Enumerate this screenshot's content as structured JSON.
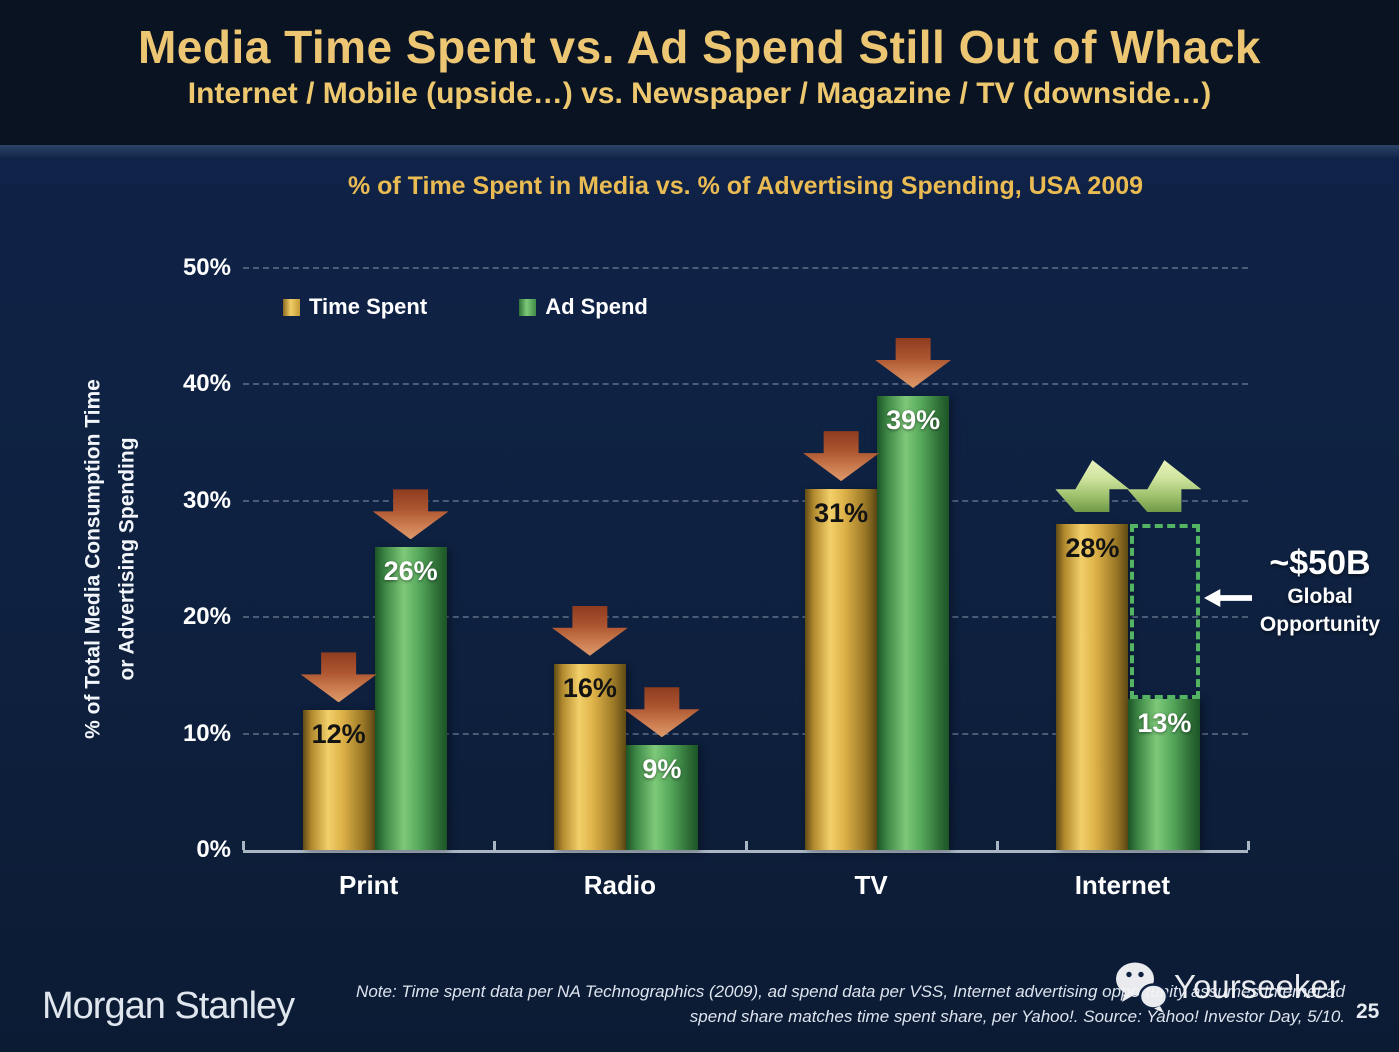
{
  "slide": {
    "title": "Media Time Spent vs. Ad Spend Still Out of Whack",
    "subtitle": "Internet / Mobile (upside…) vs. Newspaper / Magazine / TV (downside…)"
  },
  "chart_data": {
    "type": "bar",
    "title": "% of Time Spent in Media vs. % of Advertising Spending, USA 2009",
    "ylabel": [
      "% of Total Media Consumption Time",
      "or Advertising Spending"
    ],
    "ylim": [
      0,
      50
    ],
    "yticks": [
      0,
      10,
      20,
      30,
      40,
      50
    ],
    "ytick_suffix": "%",
    "grid": "horizontal-dashed",
    "legend_position": "top-left-inside-plot",
    "categories": [
      "Print",
      "Radio",
      "TV",
      "Internet"
    ],
    "series": [
      {
        "name": "Time Spent",
        "color": "#D7AC44",
        "values": [
          12,
          16,
          31,
          28
        ]
      },
      {
        "name": "Ad Spend",
        "color": "#55A75B",
        "values": [
          26,
          9,
          39,
          13
        ]
      }
    ],
    "value_suffix": "%",
    "trend_by_category": {
      "Print": "down",
      "Radio": "down",
      "TV": "down",
      "Internet": "up"
    },
    "annotation": {
      "headline": "~$50B",
      "caption_line1": "Global",
      "caption_line2": "Opportunity",
      "gap_category": "Internet",
      "gap_from": 13,
      "gap_to": 28
    }
  },
  "footer": {
    "brand": "Morgan Stanley",
    "note_line1": "Note: Time spent data per NA Technographics (2009), ad spend data per VSS, Internet advertising opportunity assumes Internet ad",
    "note_line2": "spend share matches time spent share, per Yahoo!. Source: Yahoo! Investor Day, 5/10.",
    "watermark": "Yourseeker",
    "page_number": "25"
  },
  "colors": {
    "title_gold": "#ECC673",
    "chart_title_gold": "#E9BB52",
    "time_spent_bar_gold": "#D7AC44",
    "ad_spend_bar_green": "#55A75B",
    "down_arrow_red": "#BC5E34",
    "up_arrow_green": "#B4D088",
    "gap_box_green": "#53B563",
    "background_navy": "#0E2140",
    "header_navy": "#0A1322"
  }
}
